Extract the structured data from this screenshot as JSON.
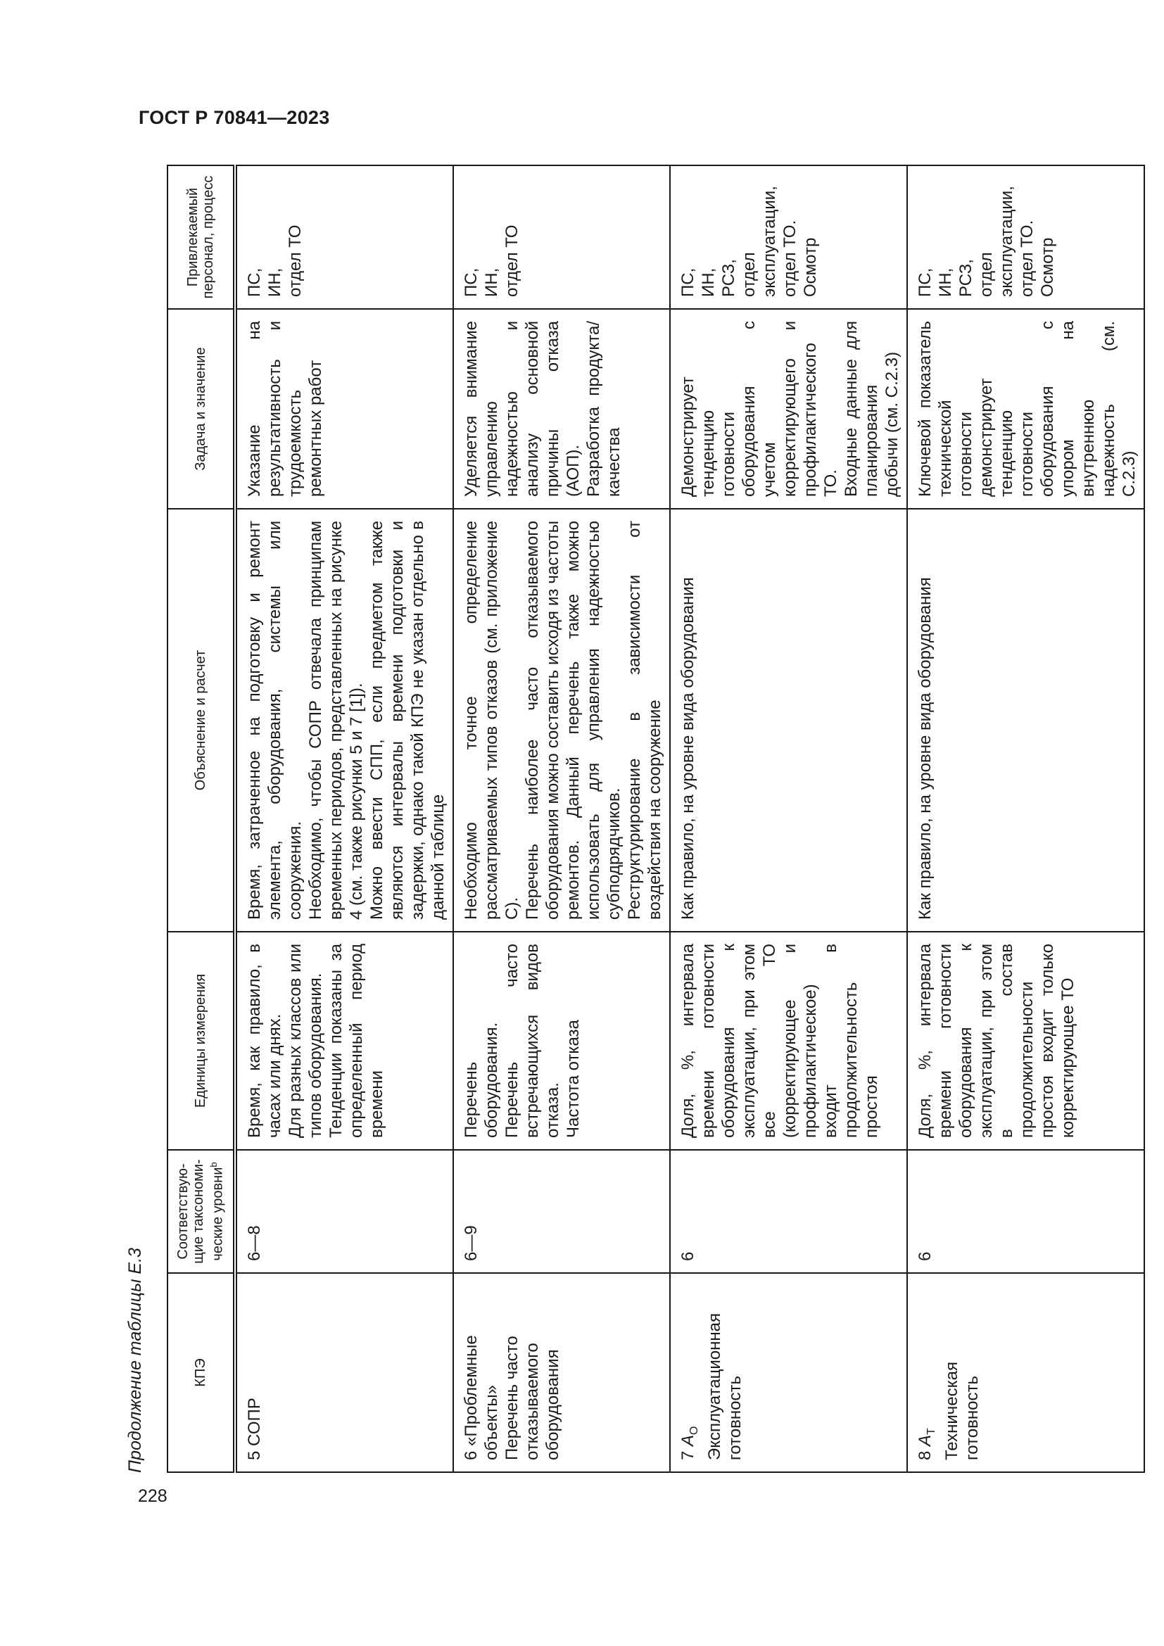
{
  "document": {
    "title": "ГОСТ Р 70841—2023",
    "caption": "Продолжение таблицы Е.3",
    "page_number": "228"
  },
  "table": {
    "headers": {
      "kpe": "КПЭ",
      "levels": "Соответствую-щие таксономи-ческие уровни",
      "levels_note": "b",
      "units": "Единицы измерения",
      "explanation": "Объяснение и расчет",
      "task": "Задача и значение",
      "personnel": "Привлекаемый персонал, процесс"
    },
    "rows": [
      {
        "kpe_num": "5",
        "kpe_symbol": "",
        "kpe_sub": "",
        "kpe_name": "СОПР",
        "levels": "6—8",
        "units": [
          "Время, как правило, в часах или днях.",
          "Для разных классов или типов оборудования.",
          "Тенденции показаны за определенный период времени"
        ],
        "explanation": [
          "Время, затраченное на подготовку и ремонт элемента, оборудования, системы или сооружения.",
          "Необходимо, чтобы СОПР отвечала принципам временных периодов, представленных на рисунке 4 (см. также рисунки 5 и 7 [1]).",
          "Можно ввести СПП, если предметом также являются интервалы времени подготовки и задержки, однако такой КПЭ не указан отдельно в данной таблице"
        ],
        "task": [
          "Указание на результативность и трудоемкость ремонтных работ"
        ],
        "personnel": "ПС,\nИН,\nотдел ТО"
      },
      {
        "kpe_num": "6",
        "kpe_symbol": "",
        "kpe_sub": "",
        "kpe_name": "«Проблемные объекты»\nПеречень часто отказываемого оборудования",
        "levels": "6—9",
        "units": [
          "Перечень оборудования.",
          "Перечень часто встречающихся видов отказа.",
          "Частота отказа"
        ],
        "explanation": [
          "Необходимо точное определение рассматриваемых типов отказов (см. приложение С).",
          "Перечень наиболее часто отказываемого оборудования можно составить исходя из частоты ремонтов. Данный перечень также можно использовать для управления надежностью субподрядчиков.",
          "Реструктурирование в зависимости от воздействия на сооружение"
        ],
        "task": [
          "Уделяется внимание управлению надежностью и анализу основной причины отказа (АОП).",
          "Разработка продукта/качества"
        ],
        "personnel": "ПС,\nИН,\nотдел ТО"
      },
      {
        "kpe_num": "7",
        "kpe_symbol": "A",
        "kpe_sub": "O",
        "kpe_name": "Эксплуатационная готовность",
        "levels": "6",
        "units": [
          "Доля, %, интервала времени готовности оборудования к эксплуатации, при этом все ТО (корректирующее и профилактическое) входит в продолжительность простоя"
        ],
        "explanation": [
          "Как правило, на уровне вида оборудования"
        ],
        "task": [
          "Демонстрирует тенденцию готовности оборудования с учетом корректирующего и профилактического ТО.",
          "Входные данные для планирования добычи (см. С.2.3)"
        ],
        "personnel": "ПС,\nИН,\nРСЗ,\nотдел эксплуатации,\nотдел ТО.\nОсмотр"
      },
      {
        "kpe_num": "8",
        "kpe_symbol": "A",
        "kpe_sub": "T",
        "kpe_name": "Техническая готовность",
        "levels": "6",
        "units": [
          "Доля, %, интервала времени готовности оборудования к эксплуатации, при этом в состав продолжительности простоя входит только корректирующее ТО"
        ],
        "explanation": [
          "Как правило, на уровне вида оборудования"
        ],
        "task": [
          "Ключевой показатель технической готовности",
          "демонстрирует тенденцию готовности оборудования с упором на внутреннюю надежность (см. С.2.3)"
        ],
        "personnel": "ПС,\nИН,\nРСЗ,\nотдел эксплуатации,\nотдел ТО.\nОсмотр"
      }
    ]
  }
}
